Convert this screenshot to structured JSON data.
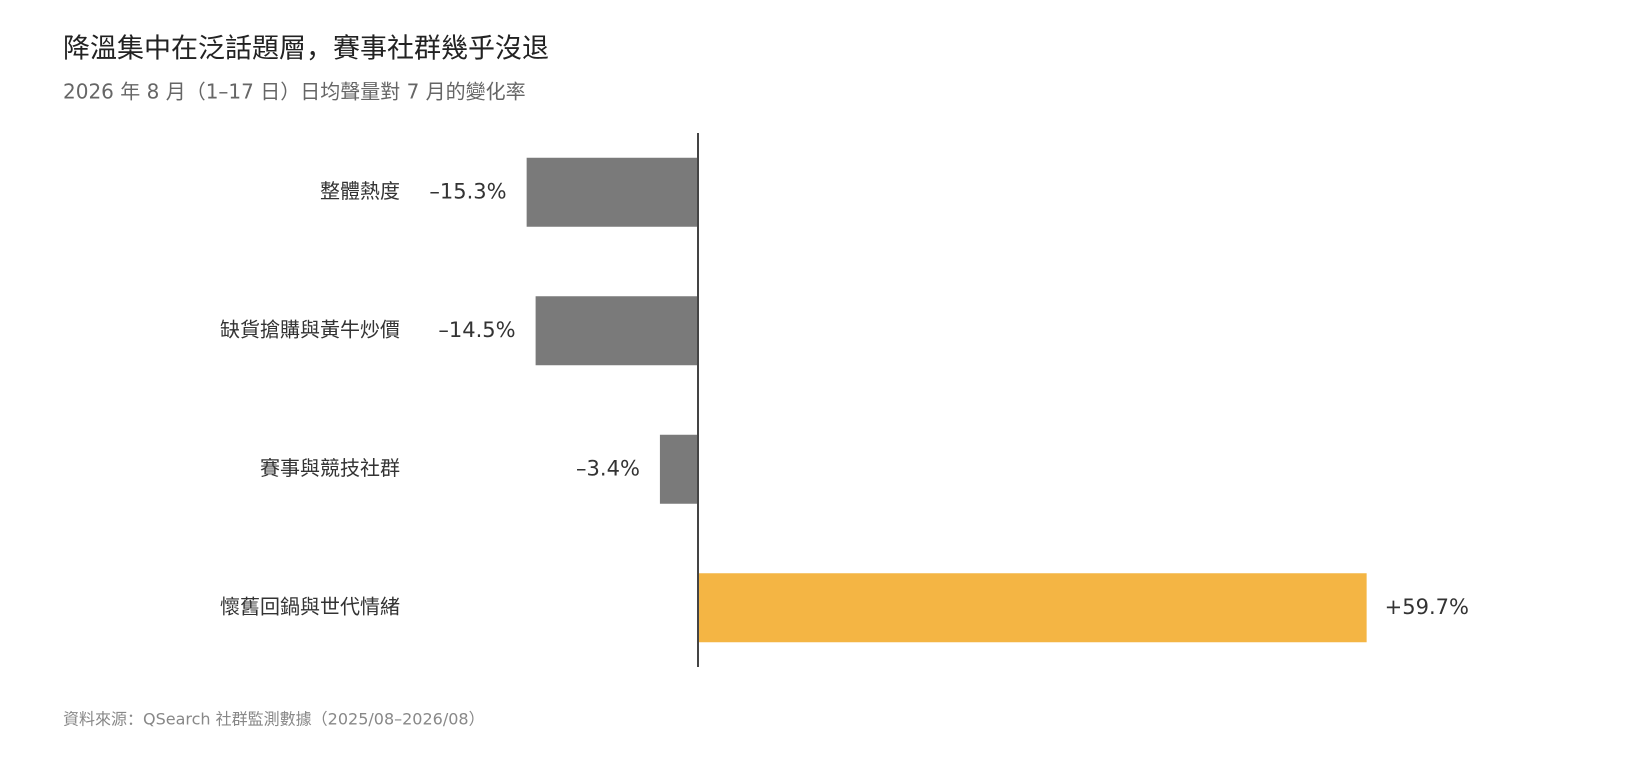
{
  "chart_data": {
    "type": "hbar",
    "title": "降溫集中在泛話題層，賽事社群幾乎沒退",
    "subtitle": "2026 年 8 月（1–17 日）日均聲量對 7 月的變化率",
    "source": "資料來源：QSearch 社群監測數據（2025/08–2026/08）",
    "categories": [
      "整體熱度",
      "缺貨搶購與黃牛炒價",
      "賽事與競技社群",
      "懷舊回鍋與世代情緒"
    ],
    "values": [
      -15.3,
      -14.5,
      -3.4,
      59.7
    ],
    "value_labels": [
      "–15.3%",
      "–14.5%",
      "–3.4%",
      "+59.7%"
    ],
    "colors": [
      "#7a7a7a",
      "#7a7a7a",
      "#7a7a7a",
      "#f4b544"
    ],
    "xlim": [
      -20,
      70
    ]
  }
}
